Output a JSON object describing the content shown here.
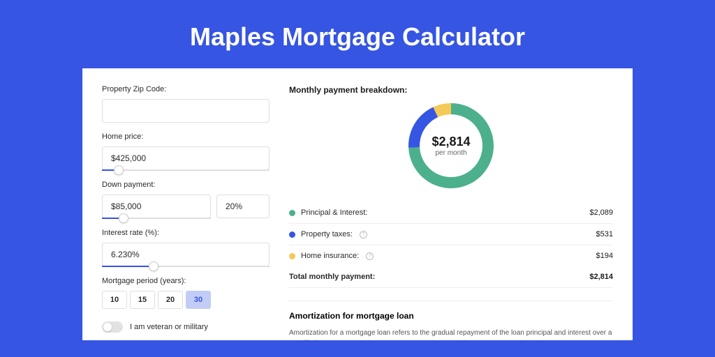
{
  "page_title": "Maples Mortgage Calculator",
  "colors": {
    "background": "#3555e2",
    "card": "#ffffff",
    "accent": "#3555e2",
    "principal": "#4cb08c",
    "taxes": "#3555e2",
    "insurance": "#f4c957",
    "period_active_bg": "#c1cdf6"
  },
  "form": {
    "zip": {
      "label": "Property Zip Code:",
      "value": ""
    },
    "home_price": {
      "label": "Home price:",
      "value": "$425,000",
      "slider_pct": 10
    },
    "down_payment": {
      "label": "Down payment:",
      "amount": "$85,000",
      "percent": "20%",
      "slider_pct": 20
    },
    "interest": {
      "label": "Interest rate (%):",
      "value": "6.230%",
      "slider_pct": 31
    },
    "period": {
      "label": "Mortgage period (years):",
      "options": [
        "10",
        "15",
        "20",
        "30"
      ],
      "selected": "30"
    },
    "veteran": {
      "label": "I am veteran or military",
      "checked": false
    }
  },
  "breakdown": {
    "title": "Monthly payment breakdown:",
    "donut": {
      "amount": "$2,814",
      "sub": "per month",
      "slices": [
        {
          "color": "#4cb08c",
          "value": 2089
        },
        {
          "color": "#3555e2",
          "value": 531
        },
        {
          "color": "#f4c957",
          "value": 194
        }
      ],
      "thickness": 16
    },
    "items": [
      {
        "dot": "#4cb08c",
        "label": "Principal & Interest:",
        "value": "$2,089",
        "info": false
      },
      {
        "dot": "#3555e2",
        "label": "Property taxes:",
        "value": "$531",
        "info": true
      },
      {
        "dot": "#f4c957",
        "label": "Home insurance:",
        "value": "$194",
        "info": true
      }
    ],
    "total": {
      "label": "Total monthly payment:",
      "value": "$2,814"
    }
  },
  "amort": {
    "title": "Amortization for mortgage loan",
    "text": "Amortization for a mortgage loan refers to the gradual repayment of the loan principal and interest over a specified"
  }
}
